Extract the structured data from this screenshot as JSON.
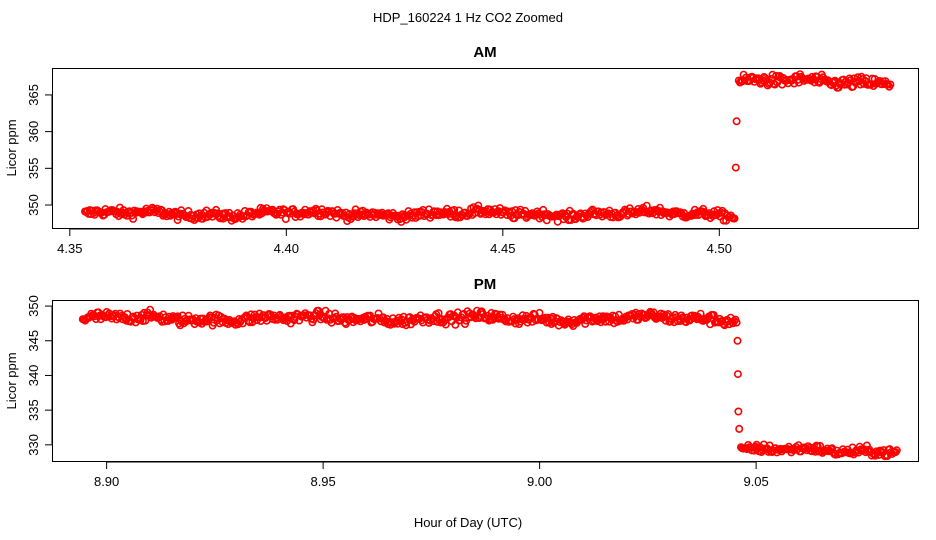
{
  "figure": {
    "title": "HDP_160224  1 Hz CO2 Zoomed",
    "xlabel": "Hour of Day (UTC)"
  },
  "colors": {
    "points": "#ff0000",
    "axes": "#000000"
  },
  "chart_data": [
    {
      "type": "scatter",
      "title": "AM",
      "xlabel": "",
      "ylabel": "Licor ppm",
      "xlim": [
        4.346,
        4.546
      ],
      "ylim": [
        346.8,
        368.6
      ],
      "xticks": [
        4.35,
        4.4,
        4.45,
        4.5
      ],
      "xtick_labels": [
        "4.35",
        "4.40",
        "4.45",
        "4.50"
      ],
      "yticks": [
        350,
        355,
        360,
        365
      ],
      "ytick_labels": [
        "350",
        "355",
        "360",
        "365"
      ],
      "segments": [
        {
          "x_start": 4.3535,
          "x_end": 4.5035,
          "mean": 348.8,
          "noise": 0.45
        },
        {
          "x_start": 4.5045,
          "x_end": 4.5395,
          "mean": 366.8,
          "noise": 0.55
        }
      ],
      "transition_points": [
        {
          "x": 4.5038,
          "y": 355.1
        },
        {
          "x": 4.504,
          "y": 361.4
        }
      ]
    },
    {
      "type": "scatter",
      "title": "PM",
      "xlabel": "",
      "ylabel": "Licor ppm",
      "xlim": [
        8.8875,
        9.0875
      ],
      "ylim": [
        327.6,
        350.8
      ],
      "xticks": [
        8.9,
        8.95,
        9.0,
        9.05
      ],
      "xtick_labels": [
        "8.90",
        "8.95",
        "9.00",
        "9.05"
      ],
      "yticks": [
        330,
        335,
        340,
        345,
        350
      ],
      "ytick_labels": [
        "330",
        "335",
        "340",
        "345",
        "350"
      ],
      "segments": [
        {
          "x_start": 8.8945,
          "x_end": 9.0455,
          "mean": 348.2,
          "noise": 0.55
        },
        {
          "x_start": 9.0465,
          "x_end": 9.0825,
          "mean": 329.2,
          "noise": 0.45
        }
      ],
      "transition_points": [
        {
          "x": 9.0457,
          "y": 345.0
        },
        {
          "x": 9.0458,
          "y": 340.2
        },
        {
          "x": 9.0459,
          "y": 334.8
        },
        {
          "x": 9.0461,
          "y": 332.3
        }
      ]
    }
  ]
}
